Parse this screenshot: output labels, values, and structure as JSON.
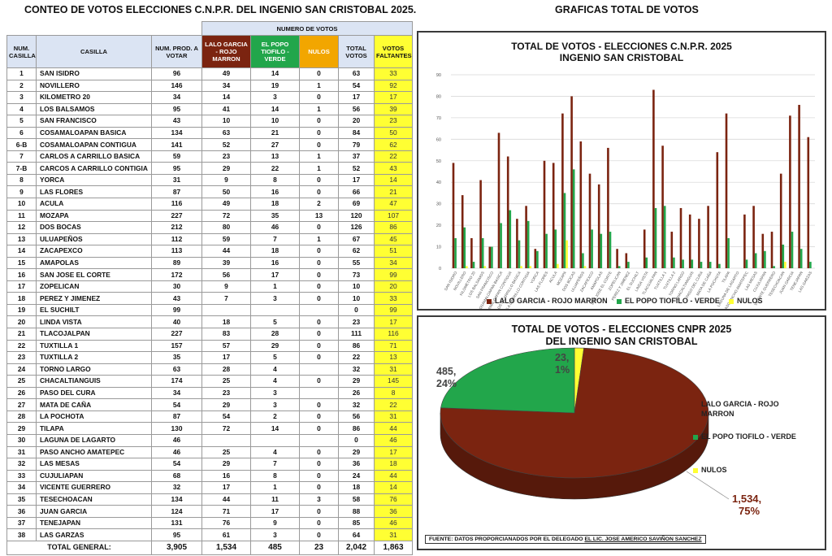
{
  "titles": {
    "left": "CONTEO DE VOTOS ELECCIONES C.N.P.R. DEL INGENIO SAN CRISTOBAL 2025.",
    "right": "GRAFICAS TOTAL DE VOTOS"
  },
  "colors": {
    "lalo": "#7b2410",
    "popo": "#22a64b",
    "nulos": "#ffff33",
    "faltantes": "#ffff33",
    "header": "#dbe4f3"
  },
  "table": {
    "group_header": "NUMERO DE VOTOS",
    "headers": {
      "num": "NUM. CASILLA",
      "casilla": "CASILLA",
      "prod": "NUM. PROD. A VOTAR",
      "lalo": "LALO GARCIA - ROJO MARRON",
      "popo": "EL POPO TIOFILO - VERDE",
      "nulos": "NULOS",
      "total": "TOTAL VOTOS",
      "faltantes": "VOTOS FALTANTES"
    },
    "rows": [
      [
        "1",
        "SAN ISIDRO",
        "96",
        "49",
        "14",
        "0",
        "63",
        "33"
      ],
      [
        "2",
        "NOVILLERO",
        "146",
        "34",
        "19",
        "1",
        "54",
        "92"
      ],
      [
        "3",
        "KILOMETRO 20",
        "34",
        "14",
        "3",
        "0",
        "17",
        "17"
      ],
      [
        "4",
        "LOS BALSAMOS",
        "95",
        "41",
        "14",
        "1",
        "56",
        "39"
      ],
      [
        "5",
        "SAN FRANCISCO",
        "43",
        "10",
        "10",
        "0",
        "20",
        "23"
      ],
      [
        "6",
        "COSAMALOAPAN BASICA",
        "134",
        "63",
        "21",
        "0",
        "84",
        "50"
      ],
      [
        "6-B",
        "COSAMALOAPAN CONTIGUA",
        "141",
        "52",
        "27",
        "0",
        "79",
        "62"
      ],
      [
        "7",
        "CARLOS A CARRILLO BASICA",
        "59",
        "23",
        "13",
        "1",
        "37",
        "22"
      ],
      [
        "7-B",
        "CARCOS A CARRILLO CONTIGIA",
        "95",
        "29",
        "22",
        "1",
        "52",
        "43"
      ],
      [
        "8",
        "YORCA",
        "31",
        "9",
        "8",
        "0",
        "17",
        "14"
      ],
      [
        "9",
        "LAS FLORES",
        "87",
        "50",
        "16",
        "0",
        "66",
        "21"
      ],
      [
        "10",
        "ACULA",
        "116",
        "49",
        "18",
        "2",
        "69",
        "47"
      ],
      [
        "11",
        "MOZAPA",
        "227",
        "72",
        "35",
        "13",
        "120",
        "107"
      ],
      [
        "12",
        "DOS BOCAS",
        "212",
        "80",
        "46",
        "0",
        "126",
        "86"
      ],
      [
        "13",
        "ULUAPEÑOS",
        "112",
        "59",
        "7",
        "1",
        "67",
        "45"
      ],
      [
        "14",
        "ZACAPEXCO",
        "113",
        "44",
        "18",
        "0",
        "62",
        "51"
      ],
      [
        "15",
        "AMAPOLAS",
        "89",
        "39",
        "16",
        "0",
        "55",
        "34"
      ],
      [
        "16",
        "SAN JOSE EL CORTE",
        "172",
        "56",
        "17",
        "0",
        "73",
        "99"
      ],
      [
        "17",
        "ZOPELICAN",
        "30",
        "9",
        "1",
        "0",
        "10",
        "20"
      ],
      [
        "18",
        "PEREZ Y JIMENEZ",
        "43",
        "7",
        "3",
        "0",
        "10",
        "33"
      ],
      [
        "19",
        "EL SUCHILT",
        "99",
        "",
        "",
        "",
        "0",
        "99"
      ],
      [
        "20",
        "LINDA VISTA",
        "40",
        "18",
        "5",
        "0",
        "23",
        "17"
      ],
      [
        "21",
        "TLACOJALPAN",
        "227",
        "83",
        "28",
        "0",
        "111",
        "116"
      ],
      [
        "22",
        "TUXTILLA 1",
        "157",
        "57",
        "29",
        "0",
        "86",
        "71"
      ],
      [
        "23",
        "TUXTILLA 2",
        "35",
        "17",
        "5",
        "0",
        "22",
        "13"
      ],
      [
        "24",
        "TORNO LARGO",
        "63",
        "28",
        "4",
        "",
        "32",
        "31"
      ],
      [
        "25",
        "CHACALTIANGUIS",
        "174",
        "25",
        "4",
        "0",
        "29",
        "145"
      ],
      [
        "26",
        "PASO DEL CURA",
        "34",
        "23",
        "3",
        "",
        "26",
        "8"
      ],
      [
        "27",
        "MATA DE CAÑA",
        "54",
        "29",
        "3",
        "0",
        "32",
        "22"
      ],
      [
        "28",
        "LA POCHOTA",
        "87",
        "54",
        "2",
        "0",
        "56",
        "31"
      ],
      [
        "29",
        "TILAPA",
        "130",
        "72",
        "14",
        "0",
        "86",
        "44"
      ],
      [
        "30",
        "LAGUNA DE LAGARTO",
        "46",
        "",
        "",
        "",
        "0",
        "46"
      ],
      [
        "31",
        "PASO ANCHO AMATEPEC",
        "46",
        "25",
        "4",
        "0",
        "29",
        "17"
      ],
      [
        "32",
        "LAS MESAS",
        "54",
        "29",
        "7",
        "0",
        "36",
        "18"
      ],
      [
        "33",
        "CUJULIAPAN",
        "68",
        "16",
        "8",
        "0",
        "24",
        "44"
      ],
      [
        "34",
        "VICENTE GUERRERO",
        "32",
        "17",
        "1",
        "0",
        "18",
        "14"
      ],
      [
        "35",
        "TESECHOACAN",
        "134",
        "44",
        "11",
        "3",
        "58",
        "76"
      ],
      [
        "36",
        "JUAN GARCIA",
        "124",
        "71",
        "17",
        "0",
        "88",
        "36"
      ],
      [
        "37",
        "TENEJAPAN",
        "131",
        "76",
        "9",
        "0",
        "85",
        "46"
      ],
      [
        "38",
        "LAS GARZAS",
        "95",
        "61",
        "3",
        "0",
        "64",
        "31"
      ]
    ],
    "total": {
      "label": "TOTAL GENERAL:",
      "prod": "3,905",
      "lalo": "1,534",
      "popo": "485",
      "nulos": "23",
      "total": "2,042",
      "faltantes": "1,863"
    }
  },
  "chart_data": [
    {
      "type": "bar",
      "title": "TOTAL DE VOTOS - ELECCIONES C.N.P.R. 2025",
      "subtitle": "INGENIO SAN CRISTOBAL",
      "ylim": [
        0,
        90
      ],
      "yticks": [
        "0",
        "10",
        "20",
        "30",
        "40",
        "50",
        "60",
        "70",
        "80",
        "90"
      ],
      "grid": true,
      "legend_position": "bottom",
      "categories": [
        "SAN ISIDRO",
        "NOVILLERO",
        "KILOMETRO 20",
        "LOS BALSAMOS",
        "SAN FRANCISCO",
        "COSAMALOAPAN BASICA",
        "COSAMALOAPAN CONTIGUA",
        "CARLOS A CARRILLO BASICA",
        "CARCOS A CARRILLO CONTIGIA",
        "YORCA",
        "LAS FLORES",
        "ACULA",
        "MOZAPA",
        "DOS BOCAS",
        "ULUAPEÑOS",
        "ZACAPEXCO",
        "AMAPOLAS",
        "SAN JOSE EL CORTE",
        "ZOPELICAN",
        "PEREZ Y JIMENEZ",
        "EL SUCHILT",
        "LINDA VISTA",
        "TLACOJALPAN",
        "TUXTILLA 1",
        "TUXTILLA 2",
        "TORNO LARGO",
        "CHACALTIANGUIS",
        "PASO DEL CURA",
        "MATA DE CAÑA",
        "LA POCHOTA",
        "TILAPA",
        "LAGUNA DE LAGARTO",
        "PASO ANCHO AMATEPEC",
        "LAS MESAS",
        "CUJULIAPAN",
        "VICENTE GUERRERO",
        "TESECHOACAN",
        "JUAN GARCIA",
        "TENEJAPAN",
        "LAS GARZAS"
      ],
      "series": [
        {
          "name": "LALO GARCIA - ROJO MARRON",
          "color": "#7b2410",
          "values": [
            49,
            34,
            14,
            41,
            10,
            63,
            52,
            23,
            29,
            9,
            50,
            49,
            72,
            80,
            59,
            44,
            39,
            56,
            9,
            7,
            0,
            18,
            83,
            57,
            17,
            28,
            25,
            23,
            29,
            54,
            72,
            0,
            25,
            29,
            16,
            17,
            44,
            71,
            76,
            61
          ]
        },
        {
          "name": "EL POPO TIOFILO - VERDE",
          "color": "#22a64b",
          "values": [
            14,
            19,
            3,
            14,
            10,
            21,
            27,
            13,
            22,
            8,
            16,
            18,
            35,
            46,
            7,
            18,
            16,
            17,
            1,
            3,
            0,
            5,
            28,
            29,
            5,
            4,
            4,
            3,
            3,
            2,
            14,
            0,
            4,
            7,
            8,
            1,
            11,
            17,
            9,
            3
          ]
        },
        {
          "name": "NULOS",
          "color": "#ffff33",
          "values": [
            0,
            1,
            0,
            1,
            0,
            0,
            0,
            1,
            1,
            0,
            0,
            2,
            13,
            0,
            1,
            0,
            0,
            0,
            0,
            0,
            0,
            0,
            0,
            0,
            0,
            0,
            0,
            0,
            0,
            0,
            0,
            0,
            0,
            0,
            0,
            0,
            3,
            0,
            0,
            0
          ]
        }
      ]
    },
    {
      "type": "pie",
      "title": "TOTAL DE VOTOS - ELECCIONES CNPR 2025",
      "subtitle": "DEL INGENIO SAN CRISTOBAL",
      "legend_position": "right",
      "slices": [
        {
          "name": "LALO GARCIA - ROJO MARRON",
          "value": 1534,
          "label_value": "1,534,",
          "label_pct": "75%",
          "color": "#7b2410"
        },
        {
          "name": "EL POPO TIOFILO - VERDE",
          "value": 485,
          "label_value": "485,",
          "label_pct": "24%",
          "color": "#22a64b"
        },
        {
          "name": "NULOS",
          "value": 23,
          "label_value": "23,",
          "label_pct": "1%",
          "color": "#ffff33"
        }
      ]
    }
  ],
  "bar_legend": [
    "LALO GARCIA - ROJO MARRON",
    "EL POPO TIOFILO - VERDE",
    "NULOS"
  ],
  "pie_legend": [
    "LALO GARCIA - ROJO MARRON",
    "EL POPO TIOFILO - VERDE",
    "NULOS"
  ],
  "source": {
    "prefix": "FUENTE: DATOS PROPORCIANADOS POR EL DELEGADO ",
    "name": "EL LIC. JOSE AMERICO SAVIÑON SANCHEZ"
  }
}
